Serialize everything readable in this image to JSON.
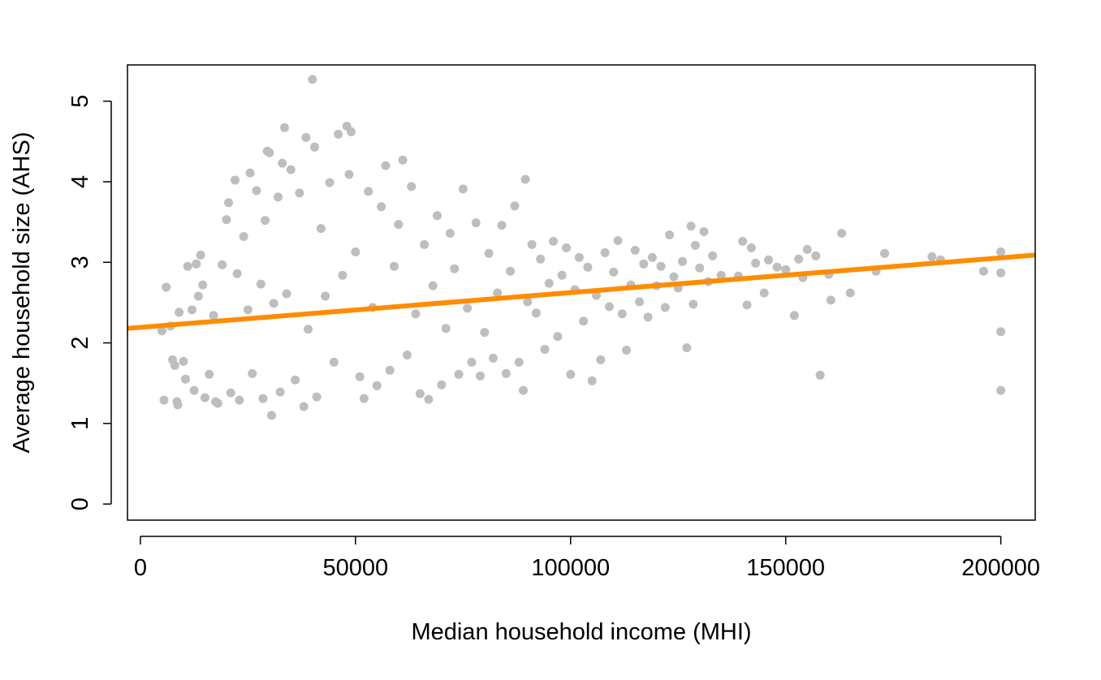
{
  "chart_data": {
    "type": "scatter",
    "title": "",
    "xlabel": "Median household income (MHI)",
    "ylabel": "Average household size (AHS)",
    "xlim": [
      -3000,
      208000
    ],
    "ylim": [
      -0.2,
      5.45
    ],
    "xticks": [
      0,
      50000,
      100000,
      150000,
      200000
    ],
    "xtick_labels": [
      "0",
      "50000",
      "100000",
      "150000",
      "200000"
    ],
    "yticks": [
      0,
      1,
      2,
      3,
      4,
      5
    ],
    "ytick_labels": [
      "0",
      "1",
      "2",
      "3",
      "4",
      "5"
    ],
    "grid": false,
    "legend": "none",
    "colors": {
      "points": "#bebebe",
      "fit_line": "#ff8c00",
      "axis": "#000000"
    },
    "series": [
      {
        "kind": "points",
        "points": [
          [
            5000,
            2.15
          ],
          [
            5500,
            1.29
          ],
          [
            6000,
            2.69
          ],
          [
            7000,
            2.21
          ],
          [
            7500,
            1.79
          ],
          [
            8000,
            1.72
          ],
          [
            8500,
            1.27
          ],
          [
            8700,
            1.23
          ],
          [
            9000,
            2.38
          ],
          [
            10000,
            1.77
          ],
          [
            10500,
            1.55
          ],
          [
            11000,
            2.95
          ],
          [
            12000,
            2.41
          ],
          [
            12500,
            1.41
          ],
          [
            13000,
            2.98
          ],
          [
            13500,
            2.58
          ],
          [
            14000,
            3.09
          ],
          [
            14500,
            2.72
          ],
          [
            15000,
            1.32
          ],
          [
            16000,
            1.61
          ],
          [
            17000,
            2.34
          ],
          [
            17500,
            1.27
          ],
          [
            18000,
            1.25
          ],
          [
            19000,
            2.97
          ],
          [
            20000,
            3.53
          ],
          [
            20500,
            3.74
          ],
          [
            21000,
            1.38
          ],
          [
            22000,
            4.02
          ],
          [
            22500,
            2.86
          ],
          [
            23000,
            1.29
          ],
          [
            24000,
            3.32
          ],
          [
            25000,
            2.41
          ],
          [
            25500,
            4.11
          ],
          [
            26000,
            1.62
          ],
          [
            27000,
            3.89
          ],
          [
            28000,
            2.73
          ],
          [
            28500,
            1.31
          ],
          [
            29000,
            3.52
          ],
          [
            29500,
            4.38
          ],
          [
            30000,
            4.36
          ],
          [
            30500,
            1.1
          ],
          [
            31000,
            2.49
          ],
          [
            32000,
            3.81
          ],
          [
            32500,
            1.39
          ],
          [
            33000,
            4.23
          ],
          [
            33500,
            4.67
          ],
          [
            34000,
            2.61
          ],
          [
            35000,
            4.15
          ],
          [
            36000,
            1.54
          ],
          [
            37000,
            3.86
          ],
          [
            38000,
            1.21
          ],
          [
            38500,
            4.55
          ],
          [
            39000,
            2.17
          ],
          [
            40000,
            5.27
          ],
          [
            40500,
            4.43
          ],
          [
            41000,
            1.33
          ],
          [
            42000,
            3.42
          ],
          [
            43000,
            2.58
          ],
          [
            44000,
            3.99
          ],
          [
            45000,
            1.76
          ],
          [
            46000,
            4.59
          ],
          [
            47000,
            2.84
          ],
          [
            48000,
            4.69
          ],
          [
            48500,
            4.09
          ],
          [
            49000,
            4.62
          ],
          [
            50000,
            3.13
          ],
          [
            51000,
            1.58
          ],
          [
            52000,
            1.31
          ],
          [
            53000,
            3.88
          ],
          [
            54000,
            2.44
          ],
          [
            55000,
            1.47
          ],
          [
            56000,
            3.69
          ],
          [
            57000,
            4.2
          ],
          [
            58000,
            1.66
          ],
          [
            59000,
            2.95
          ],
          [
            60000,
            3.47
          ],
          [
            61000,
            4.27
          ],
          [
            62000,
            1.85
          ],
          [
            63000,
            3.94
          ],
          [
            64000,
            2.36
          ],
          [
            65000,
            1.37
          ],
          [
            66000,
            3.22
          ],
          [
            67000,
            1.3
          ],
          [
            68000,
            2.71
          ],
          [
            69000,
            3.58
          ],
          [
            70000,
            1.48
          ],
          [
            71000,
            2.18
          ],
          [
            72000,
            3.36
          ],
          [
            73000,
            2.92
          ],
          [
            74000,
            1.61
          ],
          [
            75000,
            3.91
          ],
          [
            76000,
            2.43
          ],
          [
            77000,
            1.76
          ],
          [
            78000,
            3.49
          ],
          [
            79000,
            1.59
          ],
          [
            80000,
            2.13
          ],
          [
            81000,
            3.11
          ],
          [
            82000,
            1.81
          ],
          [
            83000,
            2.62
          ],
          [
            84000,
            3.46
          ],
          [
            85000,
            1.62
          ],
          [
            86000,
            2.89
          ],
          [
            87000,
            3.7
          ],
          [
            88000,
            1.76
          ],
          [
            89000,
            1.41
          ],
          [
            89500,
            4.03
          ],
          [
            90000,
            2.51
          ],
          [
            91000,
            3.22
          ],
          [
            92000,
            2.37
          ],
          [
            93000,
            3.04
          ],
          [
            94000,
            1.92
          ],
          [
            95000,
            2.74
          ],
          [
            96000,
            3.26
          ],
          [
            97000,
            2.08
          ],
          [
            98000,
            2.84
          ],
          [
            99000,
            3.18
          ],
          [
            100000,
            1.61
          ],
          [
            101000,
            2.66
          ],
          [
            102000,
            3.06
          ],
          [
            103000,
            2.27
          ],
          [
            104000,
            2.94
          ],
          [
            105000,
            1.53
          ],
          [
            106000,
            2.59
          ],
          [
            107000,
            1.79
          ],
          [
            108000,
            3.12
          ],
          [
            109000,
            2.45
          ],
          [
            110000,
            2.88
          ],
          [
            111000,
            3.27
          ],
          [
            112000,
            2.36
          ],
          [
            113000,
            1.91
          ],
          [
            114000,
            2.72
          ],
          [
            115000,
            3.15
          ],
          [
            116000,
            2.51
          ],
          [
            117000,
            2.98
          ],
          [
            118000,
            2.32
          ],
          [
            119000,
            3.06
          ],
          [
            120000,
            2.71
          ],
          [
            121000,
            2.95
          ],
          [
            122000,
            2.44
          ],
          [
            123000,
            3.34
          ],
          [
            124000,
            2.82
          ],
          [
            125000,
            2.68
          ],
          [
            126000,
            3.01
          ],
          [
            127000,
            1.94
          ],
          [
            128000,
            3.45
          ],
          [
            128500,
            2.48
          ],
          [
            129000,
            3.21
          ],
          [
            130000,
            2.93
          ],
          [
            131000,
            3.38
          ],
          [
            132000,
            2.76
          ],
          [
            133000,
            3.08
          ],
          [
            135000,
            2.84
          ],
          [
            139000,
            2.83
          ],
          [
            140000,
            3.26
          ],
          [
            141000,
            2.47
          ],
          [
            142000,
            3.18
          ],
          [
            143000,
            2.99
          ],
          [
            145000,
            2.62
          ],
          [
            146000,
            3.03
          ],
          [
            148000,
            2.94
          ],
          [
            150000,
            2.91
          ],
          [
            152000,
            2.34
          ],
          [
            153000,
            3.04
          ],
          [
            154000,
            2.81
          ],
          [
            155000,
            3.16
          ],
          [
            157000,
            3.08
          ],
          [
            158000,
            1.6
          ],
          [
            160000,
            2.85
          ],
          [
            160500,
            2.53
          ],
          [
            163000,
            3.36
          ],
          [
            165000,
            2.62
          ],
          [
            171000,
            2.89
          ],
          [
            173000,
            3.11
          ],
          [
            184000,
            3.07
          ],
          [
            186000,
            3.03
          ],
          [
            196000,
            2.89
          ],
          [
            200000,
            2.14
          ],
          [
            200000,
            1.41
          ],
          [
            200000,
            2.87
          ],
          [
            200000,
            3.13
          ]
        ]
      },
      {
        "kind": "fit_line",
        "x": [
          -3000,
          208000
        ],
        "y": [
          2.18,
          3.09
        ]
      }
    ]
  }
}
